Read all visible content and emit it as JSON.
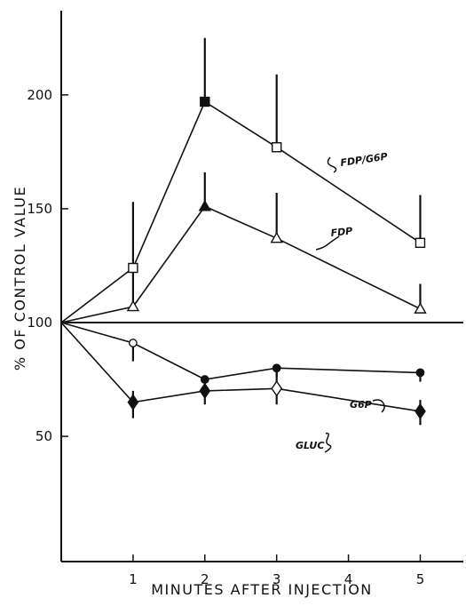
{
  "chart_data": {
    "type": "line",
    "xlabel": "MINUTES AFTER INJECTION",
    "ylabel": "% OF CONTROL VALUE",
    "x_ticks": [
      1,
      2,
      3,
      4,
      5
    ],
    "y_ticks": [
      50,
      100,
      150,
      200
    ],
    "xlim": [
      0,
      5.6
    ],
    "ylim": [
      -5,
      237
    ],
    "reference_line": 100,
    "grid": false,
    "series": [
      {
        "name": "FDP/G6P",
        "x": [
          0,
          1,
          2,
          3,
          5
        ],
        "values": [
          100,
          124,
          197,
          177,
          135
        ],
        "error_up": [
          null,
          29,
          28,
          32,
          21
        ],
        "error_down": [
          null,
          0,
          0,
          0,
          0
        ],
        "markers": [
          "none",
          "open-square",
          "filled-square",
          "open-square",
          "open-square"
        ]
      },
      {
        "name": "FDP",
        "x": [
          0,
          1,
          2,
          3,
          5
        ],
        "values": [
          100,
          107,
          151,
          137,
          106
        ],
        "error_up": [
          null,
          15,
          15,
          20,
          11
        ],
        "error_down": [
          null,
          0,
          0,
          0,
          0
        ],
        "markers": [
          "none",
          "open-triangle",
          "filled-triangle",
          "open-triangle",
          "open-triangle"
        ]
      },
      {
        "name": "G6P",
        "x": [
          0,
          1,
          2,
          3,
          5
        ],
        "values": [
          100,
          91,
          75,
          80,
          78
        ],
        "error_up": [
          null,
          0,
          0,
          0,
          0
        ],
        "error_down": [
          null,
          8,
          4,
          4,
          4
        ],
        "markers": [
          "none",
          "open-circle",
          "filled-circle",
          "filled-circle",
          "filled-circle"
        ]
      },
      {
        "name": "GLUC",
        "x": [
          0,
          1,
          2,
          3,
          5
        ],
        "values": [
          100,
          65,
          70,
          71,
          61
        ],
        "error_up": [
          null,
          5,
          4,
          7,
          5
        ],
        "error_down": [
          null,
          7,
          6,
          7,
          6
        ],
        "markers": [
          "none",
          "filled-diamond",
          "filled-diamond",
          "open-diamond",
          "filled-diamond"
        ]
      }
    ]
  }
}
